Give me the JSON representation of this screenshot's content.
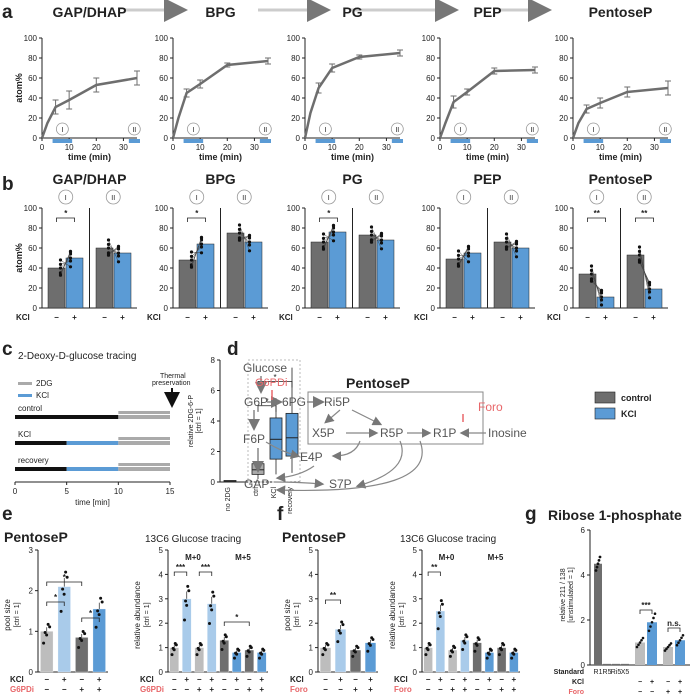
{
  "panel_letters": {
    "a": "a",
    "b": "b",
    "c": "c",
    "d": "d",
    "e": "e",
    "f": "f",
    "g": "g"
  },
  "colors": {
    "control": "#6e6e6e",
    "kcl": "#5b9bd5",
    "red": "#e8676a",
    "line": "#6e6e6e"
  },
  "a": {
    "ylabel": "atom%",
    "xlabel": "time (min)",
    "xticks": [
      0,
      10,
      20,
      30
    ],
    "yticks": [
      0,
      20,
      40,
      60,
      80,
      100
    ],
    "ylim": [
      0,
      100
    ],
    "markers": [
      "I",
      "II"
    ],
    "panels": [
      {
        "title": "GAP/DHAP",
        "x": [
          0,
          2,
          5,
          10,
          20,
          35
        ],
        "y": [
          0,
          15,
          31,
          38,
          53,
          60
        ],
        "err": [
          0,
          0,
          7,
          9,
          7,
          7
        ]
      },
      {
        "title": "BPG",
        "x": [
          0,
          2,
          5,
          10,
          20,
          35
        ],
        "y": [
          0,
          20,
          45,
          54,
          73,
          77
        ],
        "err": [
          0,
          0,
          4,
          4,
          2,
          3
        ]
      },
      {
        "title": "PG",
        "x": [
          0,
          2,
          5,
          10,
          20,
          35
        ],
        "y": [
          0,
          25,
          50,
          70,
          81,
          85
        ],
        "err": [
          0,
          0,
          5,
          4,
          2,
          3
        ]
      },
      {
        "title": "PEP",
        "x": [
          0,
          2,
          5,
          10,
          20,
          35
        ],
        "y": [
          0,
          15,
          36,
          46,
          67,
          68
        ],
        "err": [
          0,
          0,
          6,
          3,
          3,
          3
        ]
      },
      {
        "title": "PentoseP",
        "x": [
          0,
          2,
          5,
          10,
          20,
          35
        ],
        "y": [
          0,
          15,
          29,
          35,
          46,
          50
        ],
        "err": [
          0,
          0,
          4,
          5,
          5,
          7
        ]
      }
    ]
  },
  "b": {
    "ylabel": "atom%",
    "row_label": "KCl",
    "signs": [
      "−",
      "+",
      "−",
      "+"
    ],
    "groups": [
      "I",
      "II"
    ],
    "yticks": [
      0,
      20,
      40,
      60,
      80,
      100
    ],
    "panels": [
      {
        "title": "GAP/DHAP",
        "bars": [
          40,
          50,
          60,
          55
        ],
        "sig": [
          "*",
          ""
        ]
      },
      {
        "title": "BPG",
        "bars": [
          48,
          64,
          75,
          66
        ],
        "sig": [
          "*",
          ""
        ]
      },
      {
        "title": "PG",
        "bars": [
          66,
          76,
          73,
          68
        ],
        "sig": [
          "*",
          ""
        ]
      },
      {
        "title": "PEP",
        "bars": [
          49,
          55,
          66,
          60
        ],
        "sig": [
          "",
          ""
        ]
      },
      {
        "title": "PentoseP",
        "bars": [
          34,
          11,
          53,
          19
        ],
        "sig": [
          "**",
          "**"
        ]
      }
    ]
  },
  "c": {
    "title": "2-Deoxy-D-glucose tracing",
    "legend": [
      "2DG",
      "KCl"
    ],
    "annotation": "Thermal\npreservation",
    "rows": [
      "control",
      "KCl",
      "recovery"
    ],
    "xticks": [
      0,
      5,
      10,
      15
    ],
    "xlabel": "time [min]",
    "box_ylabel": "relative 2DG-6-P",
    "box_yunit": "[ctrl = 1]",
    "box_categories": [
      "no 2DG",
      "ctrl",
      "KCl",
      "recovery"
    ],
    "box_yticks": [
      0,
      2,
      4,
      6,
      8
    ],
    "box_medians": [
      0.05,
      0.8,
      2.8,
      2.9
    ],
    "sig": [
      "*",
      "*"
    ]
  },
  "d": {
    "title": "PentoseP",
    "nodes": [
      "Glucose",
      "G6PDi",
      "G6P",
      "6PG",
      "Ri5P",
      "X5P",
      "R5P",
      "R1P",
      "Inosine",
      "Foro",
      "F6P",
      "E4P",
      "GAP",
      "S7P"
    ],
    "legend": [
      "control",
      "KCl"
    ]
  },
  "e": {
    "left_title": "PentoseP",
    "left_ylabel": "pool size",
    "left_yunit": "[ctrl = 1]",
    "left_values": [
      1.0,
      2.1,
      0.85,
      1.55
    ],
    "left_yticks": [
      0,
      1,
      2,
      3
    ],
    "right_title": "13C6 Glucose tracing",
    "right_ylabel": "relative abundance",
    "right_yunit": "[ctrl = 1]",
    "right_groups": [
      "M+0",
      "M+5"
    ],
    "right_values": [
      1.0,
      3.0,
      1.0,
      2.8,
      1.3,
      0.8,
      0.9,
      0.8
    ],
    "right_yticks": [
      0,
      1,
      2,
      3,
      4,
      5
    ],
    "kcl_label": "KCl",
    "inhib_label": "G6PDi",
    "sig_left": [
      "*",
      "*",
      "*"
    ],
    "sig_right": [
      "***",
      "***",
      "*"
    ]
  },
  "f": {
    "left_title": "PentoseP",
    "left_ylabel": "pool size",
    "left_yunit": "[ctrl = 1]",
    "left_values": [
      1.0,
      1.75,
      0.9,
      1.2
    ],
    "left_yticks": [
      0,
      1,
      2,
      3,
      4,
      5
    ],
    "right_title": "13C6 Glucose tracing",
    "right_ylabel": "relative abundance",
    "right_yunit": "[ctrl = 1]",
    "right_groups": [
      "M+0",
      "M+5"
    ],
    "right_values": [
      1.0,
      2.5,
      0.9,
      1.3,
      1.2,
      0.8,
      1.0,
      0.8
    ],
    "right_yticks": [
      0,
      1,
      2,
      3,
      4,
      5
    ],
    "kcl_label": "KCl",
    "inhib_label": "Foro",
    "sig_left": [
      "**"
    ],
    "sig_right": [
      "**"
    ]
  },
  "g": {
    "title": "Ribose 1-phosphate",
    "ylabel": "relative 211 / 138",
    "yunit": "[unstimulated = 1]",
    "yticks": [
      0,
      2,
      4,
      6
    ],
    "standards": [
      "R1",
      "R5",
      "Ri5",
      "X5"
    ],
    "standard_values": [
      4.5,
      0.05,
      0.05,
      0.05
    ],
    "values": [
      1.0,
      1.9,
      0.8,
      1.1
    ],
    "row_labels": [
      "Standard",
      "KCl",
      "Foro"
    ],
    "sig": [
      "***",
      "n.s."
    ]
  }
}
